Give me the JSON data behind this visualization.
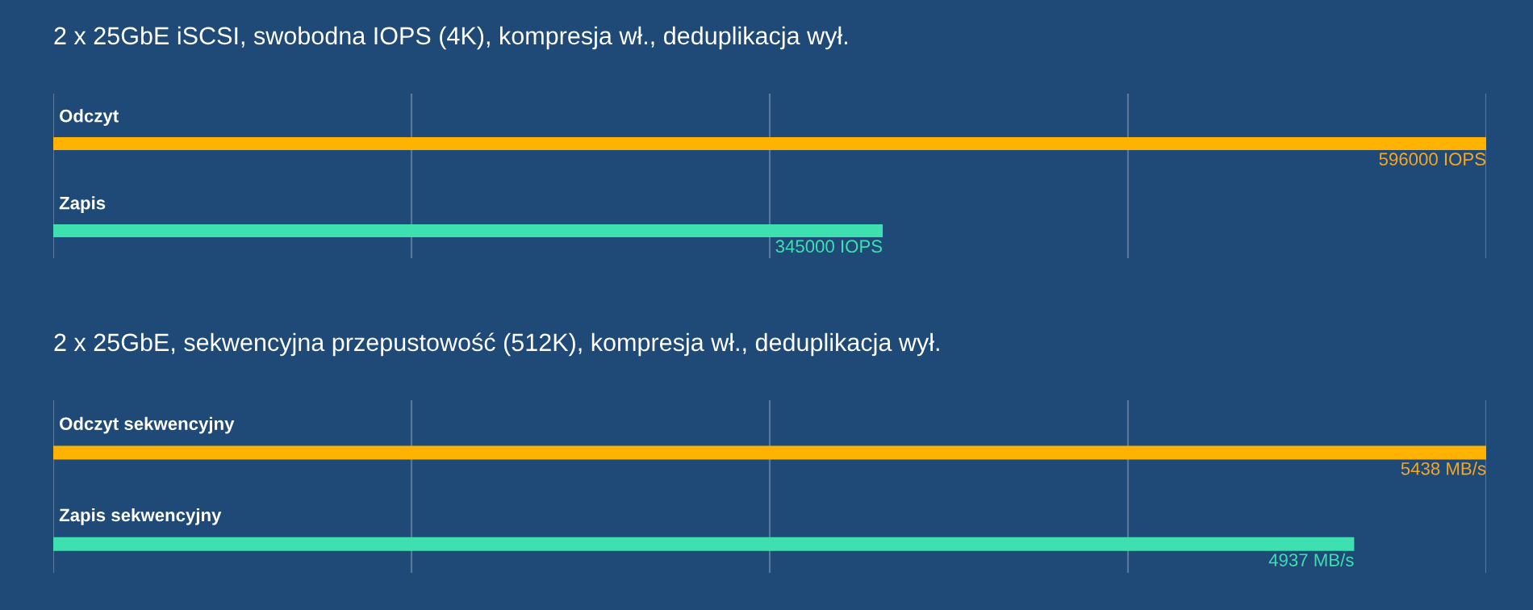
{
  "chart_data": [
    {
      "type": "bar",
      "orientation": "horizontal",
      "title": "2 x 25GbE iSCSI, swobodna IOPS (4K), kompresja wł., deduplikacja wył.",
      "categories": [
        "Odczyt",
        "Zapis"
      ],
      "values": [
        596000,
        345000
      ],
      "colors": [
        "#ffb300",
        "#3fe0b0"
      ],
      "value_labels": [
        "596000 IOPS",
        "345000 IOPS"
      ],
      "grid": "x",
      "tick_labels": false,
      "legend": false
    },
    {
      "type": "bar",
      "orientation": "horizontal",
      "title": "2 x 25GbE, sekwencyjna przepustowość (512K), kompresja wł., deduplikacja wył.",
      "categories": [
        "Odczyt sekwencyjny",
        "Zapis sekwencyjny"
      ],
      "values": [
        5438,
        4937
      ],
      "colors": [
        "#ffb300",
        "#3fe0b0"
      ],
      "value_labels": [
        "5438 MB/s",
        "4937 MB/s"
      ],
      "grid": "x",
      "tick_labels": false,
      "legend": false
    }
  ]
}
